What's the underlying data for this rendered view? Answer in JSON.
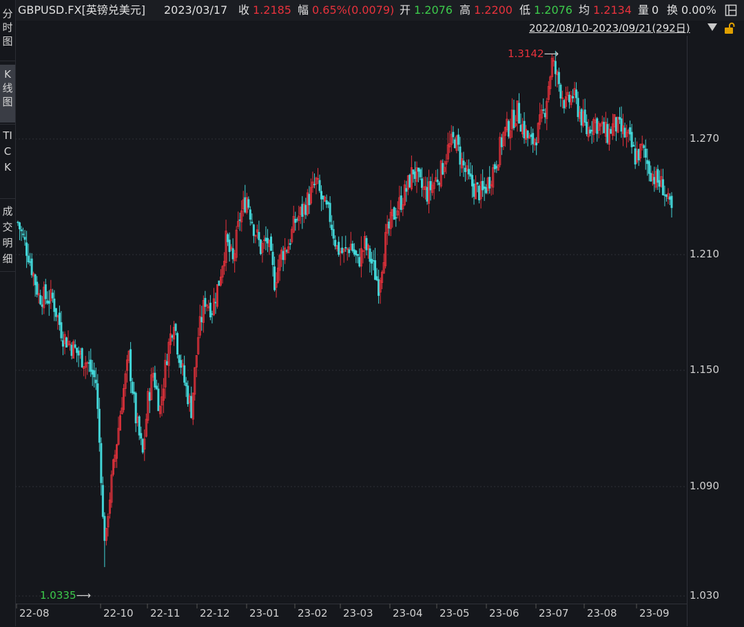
{
  "header": {
    "symbol": "GBPUSD.FX[英镑兑美元]",
    "date": "2023/03/17",
    "close_label": "收",
    "close_value": "1.2185",
    "change_label": "幅",
    "change_value": "0.65%(0.0079)",
    "open_label": "开",
    "open_value": "1.2076",
    "high_label": "高",
    "high_value": "1.2200",
    "low_label": "低",
    "low_value": "1.2076",
    "avg_label": "均",
    "avg_value": "1.2134",
    "volume_label": "量",
    "volume_value": "0",
    "turnover_label": "换",
    "turnover_value": "0.00%"
  },
  "tabs": [
    {
      "label": "分时图",
      "active": false
    },
    {
      "label": "K线图",
      "active": true
    },
    {
      "label": "TICK",
      "active": false
    },
    {
      "label": "成交明细",
      "active": false
    }
  ],
  "range_label": "2022/08/10-2023/09/21(292日)",
  "colors": {
    "up": "#e8323c",
    "down": "#43d6d8",
    "high_label": "#e8323c",
    "low_label": "#3ccb4b",
    "grid": "#2e3038"
  },
  "chart_data": {
    "type": "candlestick",
    "y_ticks": [
      "1.270",
      "1.210",
      "1.150",
      "1.090",
      "1.030"
    ],
    "x_ticks": [
      "22-08",
      "22-10",
      "22-11",
      "22-12",
      "23-01",
      "23-02",
      "23-03",
      "23-04",
      "23-05",
      "23-06",
      "23-07",
      "23-08",
      "23-09"
    ],
    "ylim": [
      1.0135,
      1.3242
    ],
    "grid": "dotted horizontal",
    "max_annotation": "1.3142",
    "min_annotation": "1.0335",
    "path": [
      [
        0,
        1.222
      ],
      [
        6,
        1.205
      ],
      [
        12,
        1.182
      ],
      [
        20,
        1.18
      ],
      [
        26,
        1.16
      ],
      [
        35,
        1.15
      ],
      [
        40,
        1.145
      ],
      [
        45,
        1.135
      ],
      [
        48,
        1.085
      ],
      [
        50,
        1.0335
      ],
      [
        52,
        1.065
      ],
      [
        56,
        1.095
      ],
      [
        60,
        1.125
      ],
      [
        64,
        1.148
      ],
      [
        68,
        1.115
      ],
      [
        72,
        1.095
      ],
      [
        75,
        1.125
      ],
      [
        78,
        1.14
      ],
      [
        82,
        1.12
      ],
      [
        86,
        1.15
      ],
      [
        90,
        1.17
      ],
      [
        92,
        1.155
      ],
      [
        96,
        1.135
      ],
      [
        100,
        1.12
      ],
      [
        104,
        1.16
      ],
      [
        108,
        1.18
      ],
      [
        112,
        1.175
      ],
      [
        116,
        1.19
      ],
      [
        120,
        1.212
      ],
      [
        124,
        1.2
      ],
      [
        128,
        1.225
      ],
      [
        132,
        1.236
      ],
      [
        136,
        1.22
      ],
      [
        140,
        1.208
      ],
      [
        144,
        1.212
      ],
      [
        148,
        1.19
      ],
      [
        152,
        1.205
      ],
      [
        156,
        1.21
      ],
      [
        160,
        1.223
      ],
      [
        164,
        1.228
      ],
      [
        168,
        1.236
      ],
      [
        172,
        1.244
      ],
      [
        176,
        1.232
      ],
      [
        180,
        1.225
      ],
      [
        184,
        1.208
      ],
      [
        188,
        1.205
      ],
      [
        192,
        1.21
      ],
      [
        196,
        1.2
      ],
      [
        200,
        1.21
      ],
      [
        204,
        1.2
      ],
      [
        208,
        1.188
      ],
      [
        212,
        1.212
      ],
      [
        216,
        1.225
      ],
      [
        220,
        1.232
      ],
      [
        224,
        1.24
      ],
      [
        228,
        1.251
      ],
      [
        232,
        1.242
      ],
      [
        236,
        1.238
      ],
      [
        240,
        1.244
      ],
      [
        244,
        1.25
      ],
      [
        248,
        1.262
      ],
      [
        252,
        1.268
      ],
      [
        256,
        1.255
      ],
      [
        260,
        1.245
      ],
      [
        264,
        1.24
      ],
      [
        268,
        1.238
      ],
      [
        272,
        1.246
      ],
      [
        276,
        1.256
      ],
      [
        280,
        1.27
      ],
      [
        284,
        1.276
      ],
      [
        288,
        1.283
      ],
      [
        292,
        1.272
      ],
      [
        296,
        1.265
      ],
      [
        300,
        1.272
      ],
      [
        304,
        1.285
      ],
      [
        308,
        1.31
      ],
      [
        312,
        1.298
      ],
      [
        316,
        1.286
      ],
      [
        320,
        1.292
      ],
      [
        324,
        1.282
      ],
      [
        328,
        1.272
      ],
      [
        332,
        1.278
      ],
      [
        336,
        1.274
      ],
      [
        340,
        1.27
      ],
      [
        344,
        1.276
      ],
      [
        348,
        1.272
      ],
      [
        352,
        1.268
      ],
      [
        356,
        1.258
      ],
      [
        360,
        1.262
      ],
      [
        364,
        1.252
      ],
      [
        368,
        1.245
      ],
      [
        372,
        1.242
      ],
      [
        375,
        1.232
      ],
      [
        377,
        1.228
      ]
    ]
  }
}
